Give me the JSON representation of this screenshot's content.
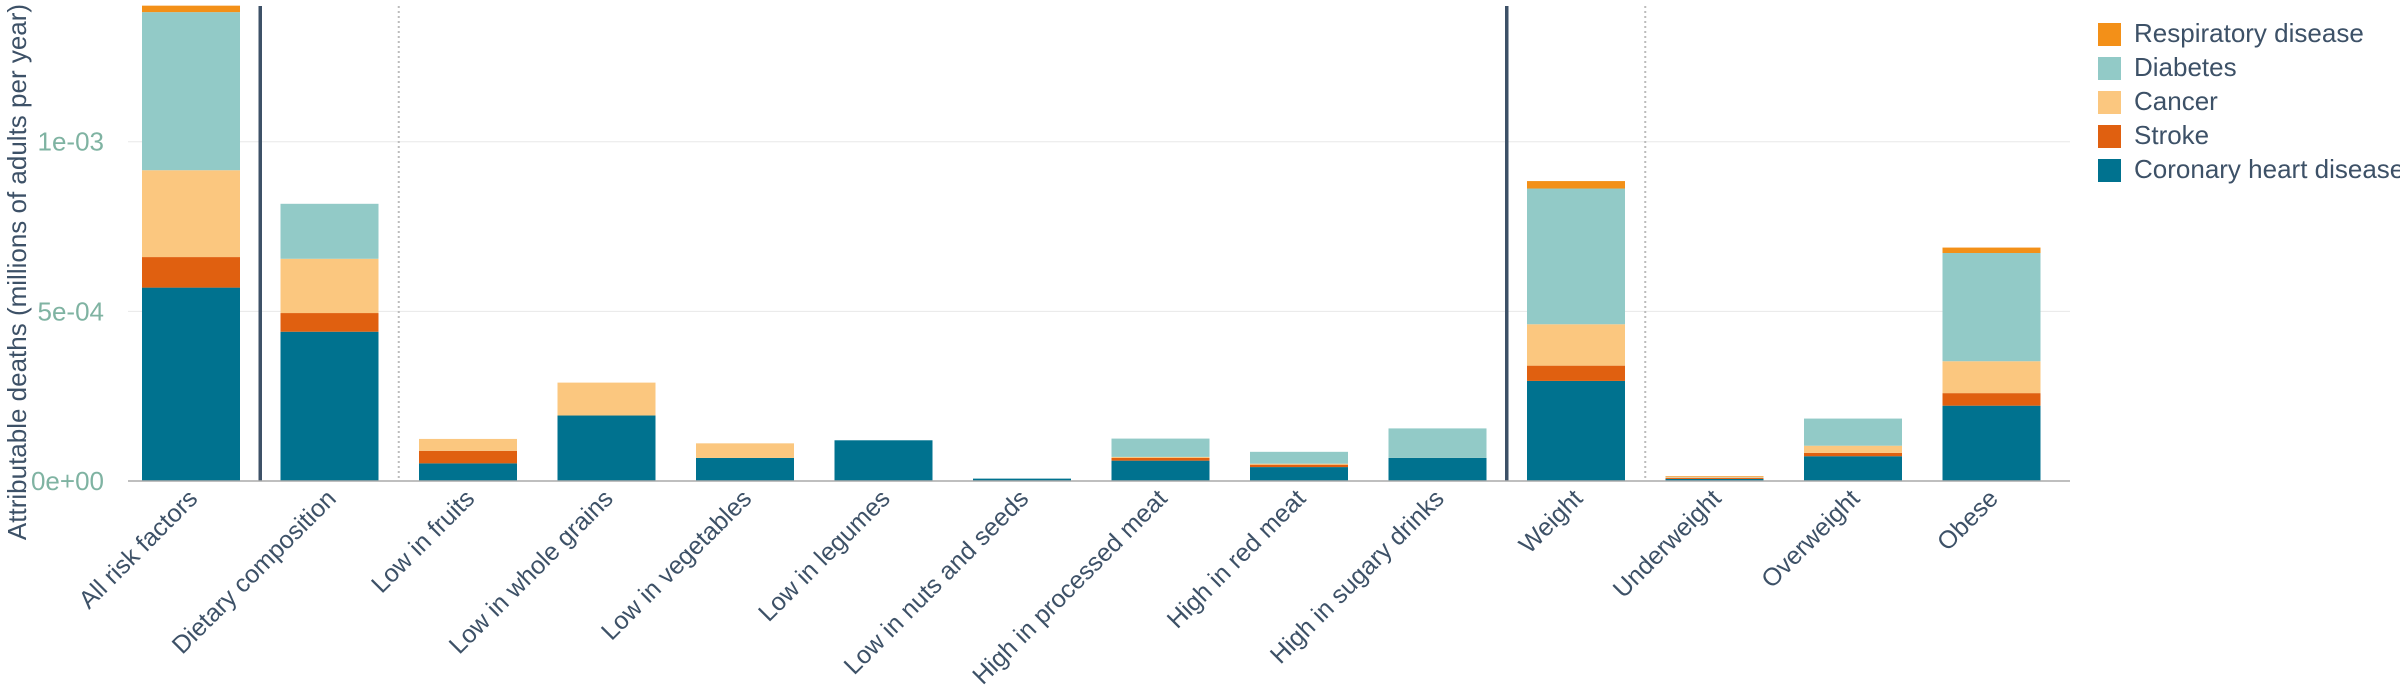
{
  "chart_data": {
    "type": "bar",
    "stacked": true,
    "title": "",
    "xlabel": "",
    "ylabel": "Attributable deaths (millions of adults per year)",
    "ylim": [
      0,
      0.0014
    ],
    "yticks": [
      {
        "value": 0,
        "label": "0e+00"
      },
      {
        "value": 0.0005,
        "label": "5e-04"
      },
      {
        "value": 0.001,
        "label": "1e-03"
      }
    ],
    "grid": true,
    "legend_position": "top-right",
    "categories": [
      "All risk factors",
      "Dietary composition",
      "Low in fruits",
      "Low in whole grains",
      "Low in vegetables",
      "Low in legumes",
      "Low in nuts and seeds",
      "High in processed meat",
      "High in red meat",
      "High in sugary drinks",
      "Weight",
      "Underweight",
      "Overweight",
      "Obese"
    ],
    "series": [
      {
        "name": "Coronary heart disease",
        "color": "#00728f",
        "values": [
          0.00057,
          0.00044,
          5.2e-05,
          0.000193,
          6.8e-05,
          0.00012,
          7e-06,
          6e-05,
          4.1e-05,
          6.8e-05,
          0.000295,
          6e-06,
          7.3e-05,
          0.000222
        ]
      },
      {
        "name": "Stroke",
        "color": "#e06010",
        "values": [
          9e-05,
          5.5e-05,
          3.7e-05,
          0.0,
          0.0,
          0.0,
          0.0,
          8e-06,
          7e-06,
          0.0,
          4.5e-05,
          3e-06,
          1e-05,
          3.7e-05
        ]
      },
      {
        "name": "Cancer",
        "color": "#fbc77f",
        "values": [
          0.000256,
          0.00016,
          3.5e-05,
          9.7e-05,
          4.3e-05,
          0.0,
          0.0,
          3e-06,
          3e-06,
          0.0,
          0.000122,
          2e-06,
          2.1e-05,
          9.4e-05
        ]
      },
      {
        "name": "Diabetes",
        "color": "#92cac7",
        "values": [
          0.000466,
          0.000162,
          0.0,
          0.0,
          0.0,
          0.0,
          0.0,
          5.4e-05,
          3.5e-05,
          8.7e-05,
          0.0004,
          1e-06,
          8e-05,
          0.000319
        ]
      },
      {
        "name": "Respiratory disease",
        "color": "#f39018",
        "values": [
          1.9e-05,
          0.0,
          0.0,
          0.0,
          0.0,
          0.0,
          0.0,
          0.0,
          0.0,
          0.0,
          2.2e-05,
          2e-06,
          0.0,
          1.6e-05
        ]
      }
    ],
    "group_separators": [
      {
        "after_category": 0,
        "style": "solid"
      },
      {
        "after_category": 1,
        "style": "dotted"
      },
      {
        "after_category": 9,
        "style": "solid"
      },
      {
        "after_category": 10,
        "style": "dotted"
      }
    ],
    "legend_order": [
      "Respiratory disease",
      "Diabetes",
      "Cancer",
      "Stroke",
      "Coronary heart disease"
    ]
  }
}
